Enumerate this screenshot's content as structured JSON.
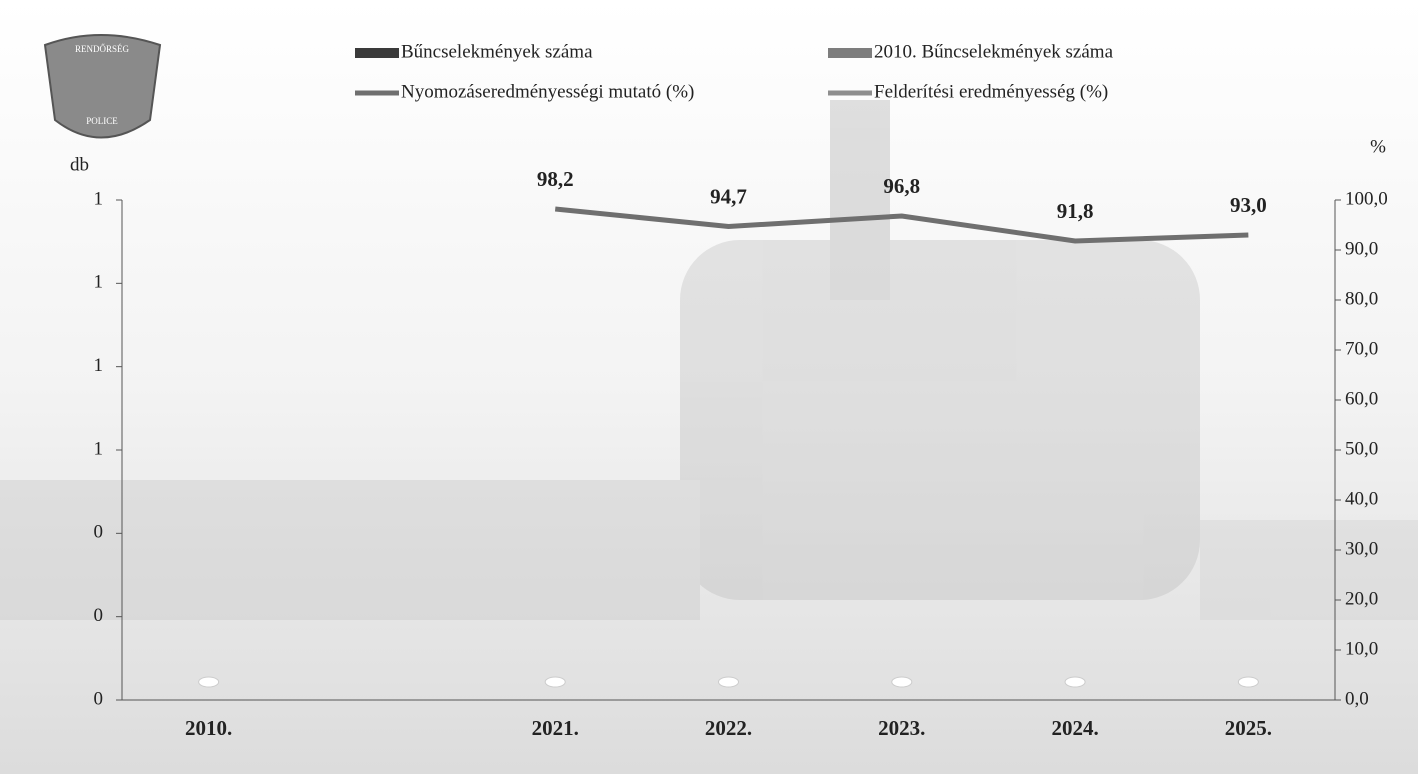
{
  "logo": {
    "top": "RENDŐRSÉG",
    "bottom": "POLICE"
  },
  "chart_data": {
    "type": "bar",
    "y_label": "db",
    "y2_label": "%",
    "categories": [
      "2010.",
      null,
      "2021.",
      "2022.",
      "2023.",
      "2024.",
      "2025."
    ],
    "ylim": [
      0,
      1.2
    ],
    "yticks": [
      {
        "value": 0,
        "label": "0"
      },
      {
        "value": 0.2,
        "label": "0"
      },
      {
        "value": 0.4,
        "label": "0"
      },
      {
        "value": 0.6,
        "label": "1"
      },
      {
        "value": 0.8,
        "label": "1"
      },
      {
        "value": 1.0,
        "label": "1"
      },
      {
        "value": 1.2,
        "label": "1"
      }
    ],
    "y2lim": [
      0,
      100
    ],
    "y2ticks": [
      {
        "value": 0,
        "label": "0,0"
      },
      {
        "value": 10,
        "label": "10,0"
      },
      {
        "value": 20,
        "label": "20,0"
      },
      {
        "value": 30,
        "label": "30,0"
      },
      {
        "value": 40,
        "label": "40,0"
      },
      {
        "value": 50,
        "label": "50,0"
      },
      {
        "value": 60,
        "label": "60,0"
      },
      {
        "value": 70,
        "label": "70,0"
      },
      {
        "value": 80,
        "label": "80,0"
      },
      {
        "value": 90,
        "label": "90,0"
      },
      {
        "value": 100,
        "label": "100,0"
      }
    ],
    "series": [
      {
        "name": "Bűncselekmények száma",
        "type": "bar",
        "color": "#3a3a3a",
        "values": [
          null,
          null,
          0,
          0,
          0,
          0,
          0
        ]
      },
      {
        "name": "2010. Bűncselekmények száma",
        "type": "bar",
        "color": "#7d7d7d",
        "values": [
          0,
          null,
          null,
          null,
          null,
          null,
          null
        ]
      },
      {
        "name": "Nyomozáseredményességi mutató (%)",
        "type": "line",
        "axis": "y2",
        "color": "#6f6f6f",
        "values": [
          null,
          null,
          98.2,
          94.7,
          96.8,
          91.8,
          93.0
        ],
        "value_labels": [
          null,
          null,
          "98,2",
          "94,7",
          "96,8",
          "91,8",
          "93,0"
        ]
      },
      {
        "name": "Felderítési eredményesség (%)",
        "type": "line",
        "axis": "y2",
        "color": "#8e8e8e",
        "values": [
          null,
          null,
          null,
          null,
          null,
          null,
          null
        ]
      }
    ]
  }
}
